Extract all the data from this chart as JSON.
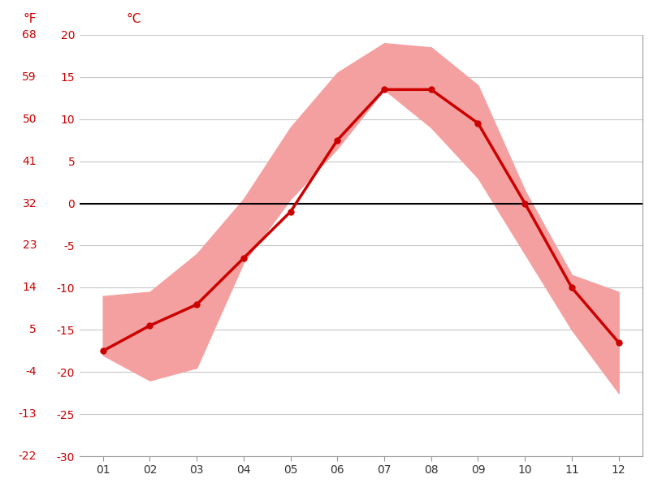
{
  "months": [
    1,
    2,
    3,
    4,
    5,
    6,
    7,
    8,
    9,
    10,
    11,
    12
  ],
  "month_labels": [
    "01",
    "02",
    "03",
    "04",
    "05",
    "06",
    "07",
    "08",
    "09",
    "10",
    "11",
    "12"
  ],
  "avg_high": [
    -11.0,
    -10.5,
    -6.0,
    0.5,
    9.0,
    15.5,
    19.0,
    18.5,
    14.0,
    1.5,
    -8.5,
    -10.5
  ],
  "avg_low": [
    -18.0,
    -21.0,
    -19.5,
    -7.0,
    0.5,
    6.5,
    13.5,
    9.0,
    3.0,
    -6.0,
    -15.0,
    -22.5
  ],
  "mean": [
    -17.5,
    -14.5,
    -12.0,
    -6.5,
    -1.0,
    7.5,
    13.5,
    13.5,
    9.5,
    0.0,
    -10.0,
    -16.5
  ],
  "celsius_ticks": [
    -30,
    -25,
    -20,
    -15,
    -10,
    -5,
    0,
    5,
    10,
    15,
    20
  ],
  "fahrenheit_ticks": [
    -22,
    -13,
    -4,
    5,
    14,
    23,
    32,
    41,
    50,
    59,
    68
  ],
  "band_color": "#f5a0a0",
  "line_color": "#cc0000",
  "zero_line_color": "#000000",
  "grid_color": "#c8c8c8",
  "tick_color": "#cc0000",
  "xtick_color": "#333333",
  "bg_color": "#ffffff",
  "ylim": [
    -30,
    20
  ],
  "xlim_min": 0.5,
  "xlim_max": 12.5,
  "figsize": [
    8.15,
    6.11
  ],
  "dpi": 100
}
